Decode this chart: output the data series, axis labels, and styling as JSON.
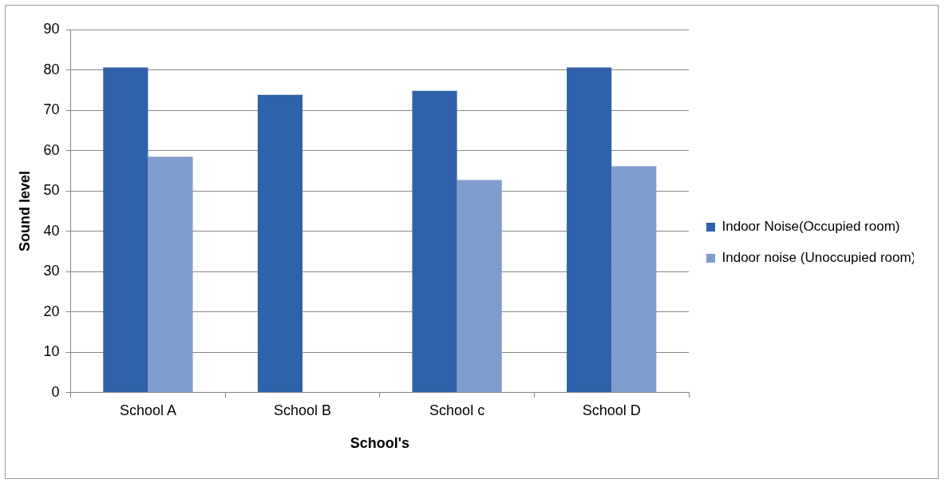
{
  "chart_data": {
    "type": "bar",
    "xlabel": "School's",
    "ylabel": "Sound level",
    "categories": [
      "School A",
      "School B",
      "School c",
      "School D"
    ],
    "series": [
      {
        "name": "Indoor Noise(Occupied room)",
        "color": "#2f62a8",
        "values": [
          80.6,
          73.8,
          74.8,
          80.6
        ]
      },
      {
        "name": "Indoor noise (Unoccupied room)",
        "color": "#7f9dcc",
        "values": [
          58.5,
          null,
          52.7,
          56.1
        ]
      }
    ],
    "ylim": [
      0,
      90
    ],
    "yticks": [
      0,
      10,
      20,
      30,
      40,
      50,
      60,
      70,
      80,
      90
    ],
    "grid": "y",
    "legend": "right"
  }
}
